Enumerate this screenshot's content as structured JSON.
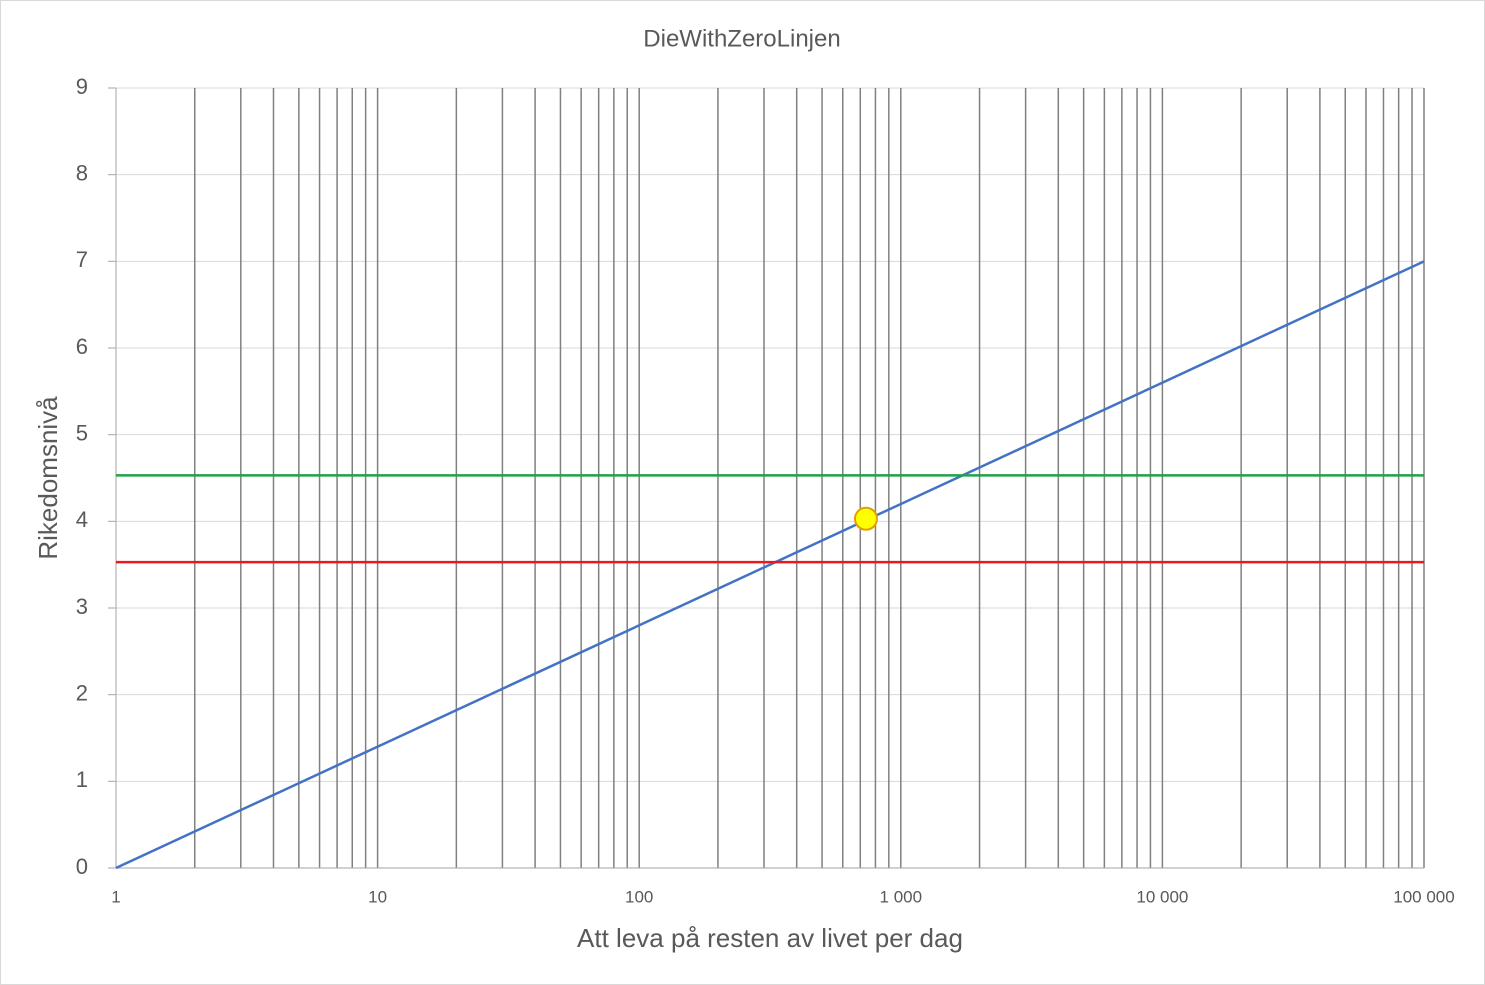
{
  "chart_data": {
    "type": "line",
    "title": "DieWithZeroLinjen",
    "xlabel": "Att leva på resten av livet per dag",
    "ylabel": "Rikedomsnivå",
    "xscale": "log",
    "xlim": [
      1,
      100000
    ],
    "xticks": [
      1,
      10,
      100,
      {
        "value": 1000,
        "label": "1 000"
      },
      {
        "value": 10000,
        "label": "10 000"
      },
      {
        "value": 100000,
        "label": "100 000"
      }
    ],
    "x_minor_grid": [
      2,
      3,
      4,
      5,
      6,
      7,
      8,
      9,
      20,
      30,
      40,
      50,
      60,
      70,
      80,
      90,
      200,
      300,
      400,
      500,
      600,
      700,
      800,
      900,
      2000,
      3000,
      4000,
      5000,
      6000,
      7000,
      8000,
      9000,
      20000,
      30000,
      40000,
      50000,
      60000,
      70000,
      80000,
      90000
    ],
    "ylim": [
      0,
      9
    ],
    "yticks": [
      0,
      1,
      2,
      3,
      4,
      5,
      6,
      7,
      8,
      9
    ],
    "grid": true,
    "series": [
      {
        "color": "#4472c4",
        "x": [
          1,
          100000
        ],
        "values": [
          0,
          7
        ]
      },
      {
        "color": "#1fa34a",
        "x": [
          1,
          100000
        ],
        "values": [
          4.53,
          4.53
        ]
      },
      {
        "color": "#e8191f",
        "x": [
          1,
          100000
        ],
        "values": [
          3.53,
          3.53
        ]
      },
      {
        "color": "#ffff00",
        "edgecolor": "#e0a000",
        "marker": "circle",
        "x": [
          736
        ],
        "values": [
          4.03
        ]
      }
    ]
  }
}
